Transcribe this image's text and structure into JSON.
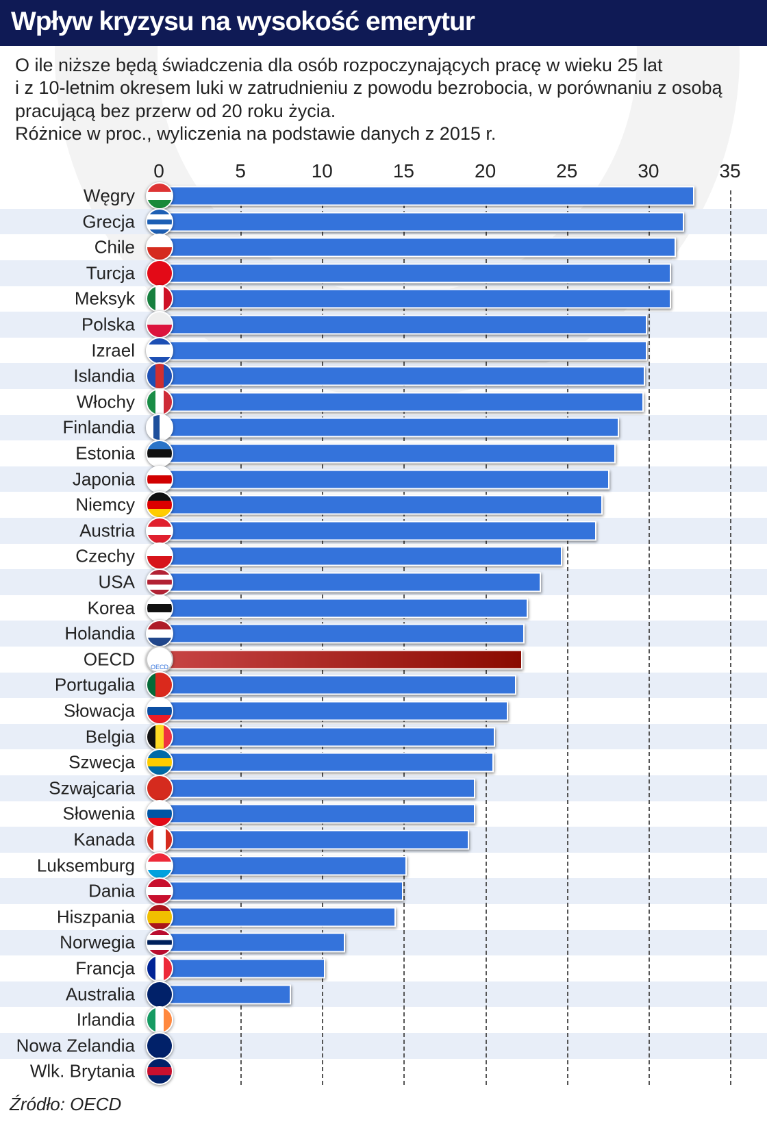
{
  "header": {
    "title": "Wpływ kryzysu na wysokość emerytur"
  },
  "subtitle": [
    "O ile niższe będą świadczenia dla osób rozpoczynających pracę w wieku 25 lat",
    "i z 10-letnim okresem luki w zatrudnieniu z powodu bezrobocia, w porównaniu z osobą",
    "pracującą bez przerw od 20 roku życia.",
    "Różnice w proc., wyliczenia na podstawie danych z 2015 r."
  ],
  "source": "Źródło: OECD",
  "colors": {
    "bar": "#3473db",
    "highlight": "#a01a10",
    "band": "#e8eef8",
    "header": "#0f1a55"
  },
  "chart_data": {
    "type": "bar",
    "orientation": "horizontal",
    "xlim": [
      0,
      35
    ],
    "xticks": [
      "0",
      "5",
      "10",
      "15",
      "20",
      "25",
      "30",
      "35"
    ],
    "grid": true,
    "categories": [
      "Węgry",
      "Grecja",
      "Chile",
      "Turcja",
      "Meksyk",
      "Polska",
      "Izrael",
      "Islandia",
      "Włochy",
      "Finlandia",
      "Estonia",
      "Japonia",
      "Niemcy",
      "Austria",
      "Czechy",
      "USA",
      "Korea",
      "Holandia",
      "OECD",
      "Portugalia",
      "Słowacja",
      "Belgia",
      "Szwecja",
      "Szwajcaria",
      "Słowenia",
      "Kanada",
      "Luksemburg",
      "Dania",
      "Hiszpania",
      "Norwegia",
      "Francja",
      "Australia",
      "Irlandia",
      "Nowa Zelandia",
      "Wlk. Brytania"
    ],
    "values": [
      32.8,
      32.2,
      31.7,
      31.4,
      31.4,
      29.9,
      29.9,
      29.8,
      29.7,
      28.2,
      28.0,
      27.6,
      27.2,
      26.8,
      24.7,
      23.4,
      22.6,
      22.4,
      22.3,
      21.9,
      21.4,
      20.6,
      20.5,
      19.4,
      19.4,
      19.0,
      15.2,
      15.0,
      14.5,
      11.4,
      10.2,
      8.1,
      0,
      0,
      0
    ],
    "highlight": "OECD",
    "flags": [
      [
        "v",
        "#d33",
        "#fff",
        "#1a8a3a"
      ],
      [
        "v",
        "#1d5fb4",
        "#fff",
        "#1d5fb4",
        "#fff",
        "#1d5fb4"
      ],
      [
        "v",
        "#fff",
        "#d52b1e"
      ],
      [
        "v",
        "#e30a17",
        "#e30a17"
      ],
      [
        "h",
        "#17803e",
        "#fff",
        "#ce1126"
      ],
      [
        "v",
        "#eee",
        "#dc143c"
      ],
      [
        "v",
        "#1d4fb4",
        "#fff",
        "#fff",
        "#1d4fb4"
      ],
      [
        "h",
        "#1d4fb4",
        "#d02f2f",
        "#1d4fb4"
      ],
      [
        "h",
        "#198c45",
        "#fff",
        "#ce2b37"
      ],
      [
        "h",
        "#fff",
        "#1d4f9c",
        "#fff",
        "#fff"
      ],
      [
        "v",
        "#2a74c8",
        "#111",
        "#fff"
      ],
      [
        "v",
        "#fff",
        "#d10000",
        "#fff"
      ],
      [
        "v",
        "#111",
        "#d00",
        "#fc0"
      ],
      [
        "v",
        "#e0202e",
        "#fff",
        "#e0202e"
      ],
      [
        "v",
        "#fff",
        "#d7141a"
      ],
      [
        "v",
        "#b22234",
        "#fff",
        "#b22234",
        "#fff",
        "#b22234"
      ],
      [
        "v",
        "#fff",
        "#111",
        "#fff"
      ],
      [
        "v",
        "#ae1c28",
        "#fff",
        "#21468b"
      ],
      [
        "v",
        "#fff",
        "#fff"
      ],
      [
        "h",
        "#046a38",
        "#da291c",
        "#da291c"
      ],
      [
        "v",
        "#fff",
        "#0b4ea2",
        "#ee1c25"
      ],
      [
        "h",
        "#111",
        "#fdda24",
        "#ef3340"
      ],
      [
        "v",
        "#006aa7",
        "#fecc00",
        "#006aa7"
      ],
      [
        "v",
        "#d52b1e",
        "#d52b1e"
      ],
      [
        "v",
        "#fff",
        "#0055a4",
        "#e30a17"
      ],
      [
        "h",
        "#d52b1e",
        "#fff",
        "#fff",
        "#d52b1e"
      ],
      [
        "v",
        "#ed2939",
        "#fff",
        "#00a1de"
      ],
      [
        "v",
        "#c8102e",
        "#fff",
        "#c8102e"
      ],
      [
        "v",
        "#aa151b",
        "#f1bf00",
        "#f1bf00",
        "#aa151b"
      ],
      [
        "v",
        "#ba0c2f",
        "#fff",
        "#00205b",
        "#fff",
        "#ba0c2f"
      ],
      [
        "h",
        "#002395",
        "#fff",
        "#ed2939"
      ],
      [
        "v",
        "#012169",
        "#012169"
      ],
      [
        "h",
        "#169b62",
        "#fff",
        "#ff883e"
      ],
      [
        "v",
        "#012169",
        "#012169"
      ],
      [
        "v",
        "#012169",
        "#c8102e",
        "#012169"
      ]
    ]
  }
}
